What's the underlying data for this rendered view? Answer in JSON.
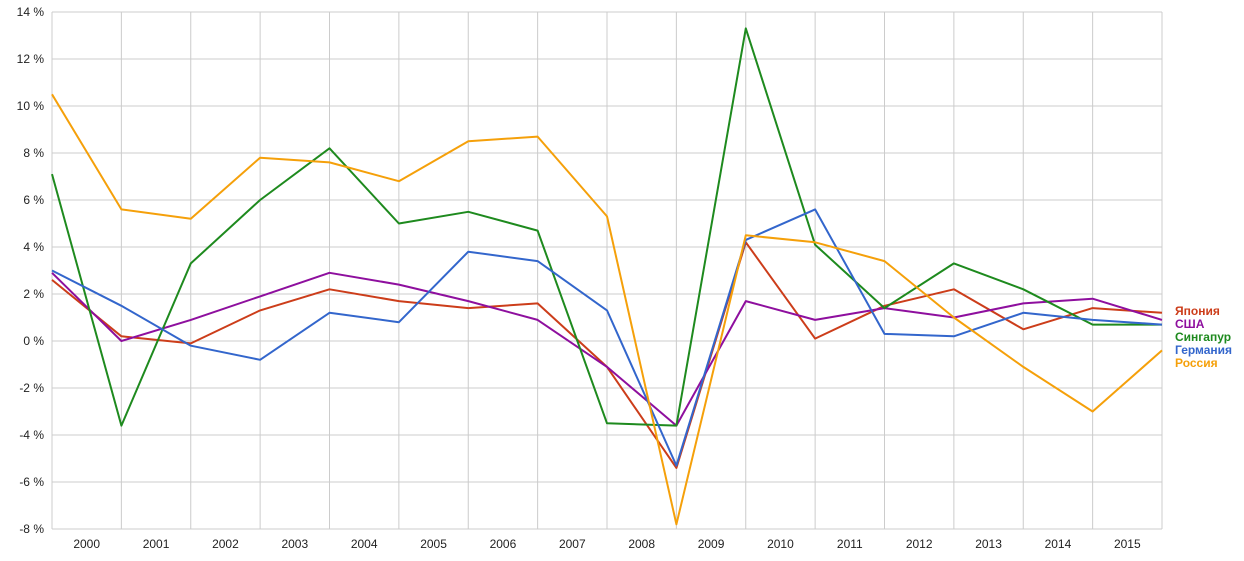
{
  "chart_data": {
    "type": "line",
    "title": "",
    "xlabel": "",
    "ylabel": "",
    "x": [
      1999.5,
      2000.5,
      2001.5,
      2002.5,
      2003.5,
      2004.5,
      2005.5,
      2006.5,
      2007.5,
      2008.5,
      2009.5,
      2010.5,
      2011.5,
      2012.5,
      2013.5,
      2014.5,
      2015.5
    ],
    "xlim": [
      1999.5,
      2015.5
    ],
    "x_ticks": [
      {
        "value": 2000,
        "label": "2000"
      },
      {
        "value": 2001,
        "label": "2001"
      },
      {
        "value": 2002,
        "label": "2002"
      },
      {
        "value": 2003,
        "label": "2003"
      },
      {
        "value": 2004,
        "label": "2004"
      },
      {
        "value": 2005,
        "label": "2005"
      },
      {
        "value": 2006,
        "label": "2006"
      },
      {
        "value": 2007,
        "label": "2007"
      },
      {
        "value": 2008,
        "label": "2008"
      },
      {
        "value": 2009,
        "label": "2009"
      },
      {
        "value": 2010,
        "label": "2010"
      },
      {
        "value": 2011,
        "label": "2011"
      },
      {
        "value": 2012,
        "label": "2012"
      },
      {
        "value": 2013,
        "label": "2013"
      },
      {
        "value": 2014,
        "label": "2014"
      },
      {
        "value": 2015,
        "label": "2015"
      }
    ],
    "ylim": [
      -8,
      14
    ],
    "y_ticks": [
      {
        "value": 14,
        "label": "14 %"
      },
      {
        "value": 12,
        "label": "12 %"
      },
      {
        "value": 10,
        "label": "10 %"
      },
      {
        "value": 8,
        "label": "8 %"
      },
      {
        "value": 6,
        "label": "6 %"
      },
      {
        "value": 4,
        "label": "4 %"
      },
      {
        "value": 2,
        "label": "2 %"
      },
      {
        "value": 0,
        "label": "0 %"
      },
      {
        "value": -2,
        "label": "-2 %"
      },
      {
        "value": -4,
        "label": "-4 %"
      },
      {
        "value": -6,
        "label": "-6 %"
      },
      {
        "value": -8,
        "label": "-8 %"
      }
    ],
    "grid": true,
    "legend_position": "right",
    "series": [
      {
        "name": "Япония",
        "color": "#cc3d1a",
        "values": [
          2.6,
          0.2,
          -0.1,
          1.3,
          2.2,
          1.7,
          1.4,
          1.6,
          -1.1,
          -5.4,
          4.2,
          0.1,
          1.5,
          2.2,
          0.5,
          1.4,
          1.2
        ]
      },
      {
        "name": "США",
        "color": "#8e0f9e",
        "values": [
          2.9,
          0.0,
          0.9,
          1.9,
          2.9,
          2.4,
          1.7,
          0.9,
          -1.1,
          -3.6,
          1.7,
          0.9,
          1.4,
          1.0,
          1.6,
          1.8,
          0.9
        ]
      },
      {
        "name": "Сингапур",
        "color": "#1e8a1e",
        "values": [
          7.1,
          -3.6,
          3.3,
          6.0,
          8.2,
          5.0,
          5.5,
          4.7,
          -3.5,
          -3.6,
          13.3,
          4.1,
          1.4,
          3.3,
          2.2,
          0.7,
          0.7
        ]
      },
      {
        "name": "Германия",
        "color": "#3366cc",
        "values": [
          3.0,
          1.5,
          -0.2,
          -0.8,
          1.2,
          0.8,
          3.8,
          3.4,
          1.3,
          -5.3,
          4.3,
          5.6,
          0.3,
          0.2,
          1.2,
          0.9,
          0.7
        ]
      },
      {
        "name": "Россия",
        "color": "#f5a00a",
        "values": [
          10.5,
          5.6,
          5.2,
          7.8,
          7.6,
          6.8,
          8.5,
          8.7,
          5.3,
          -7.8,
          4.5,
          4.2,
          3.4,
          1.0,
          -1.1,
          -3.0,
          -0.4
        ]
      }
    ]
  }
}
